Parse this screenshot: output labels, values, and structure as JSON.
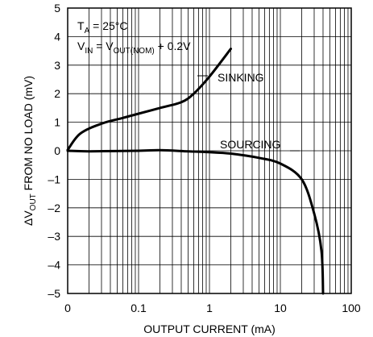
{
  "chart_data": {
    "type": "line",
    "title": "",
    "xlabel": "OUTPUT CURRENT (mA)",
    "ylabel": {
      "prefix": "ΔV",
      "sub": "OUT",
      "suffix": " FROM NO LOAD (mV)"
    },
    "x_scale": "log, with 0 at the left edge",
    "x_ticks": [
      {
        "value": 0,
        "label": "0"
      },
      {
        "value": 0.1,
        "label": "0.1"
      },
      {
        "value": 1,
        "label": "1"
      },
      {
        "value": 10,
        "label": "10"
      },
      {
        "value": 100,
        "label": "100"
      }
    ],
    "y_ticks": [
      {
        "value": 5,
        "label": "5"
      },
      {
        "value": 4,
        "label": "4"
      },
      {
        "value": 3,
        "label": "3"
      },
      {
        "value": 2,
        "label": "2"
      },
      {
        "value": 1,
        "label": "1"
      },
      {
        "value": 0,
        "label": "0"
      },
      {
        "value": -1,
        "label": "–1"
      },
      {
        "value": -2,
        "label": "–2"
      },
      {
        "value": -3,
        "label": "–3"
      },
      {
        "value": -4,
        "label": "–4"
      },
      {
        "value": -5,
        "label": "–5"
      }
    ],
    "ylim": [
      -5,
      5
    ],
    "grid": true,
    "annotations": {
      "line1": {
        "prefix": "T",
        "sub": "A",
        "suffix": " = 25°C"
      },
      "line2": {
        "p1": "V",
        "s1": "IN",
        "p2": " = V",
        "s2": "OUT(NOM)",
        "p3": " + 0.2V"
      }
    },
    "series": [
      {
        "name": "SINKING",
        "points": [
          [
            0,
            0.03
          ],
          [
            0.015,
            0.6
          ],
          [
            0.03,
            0.95
          ],
          [
            0.06,
            1.15
          ],
          [
            0.1,
            1.3
          ],
          [
            0.2,
            1.5
          ],
          [
            0.4,
            1.7
          ],
          [
            0.6,
            2.0
          ],
          [
            1,
            2.6
          ],
          [
            2,
            3.57
          ]
        ]
      },
      {
        "name": "SOURCING",
        "points": [
          [
            0,
            0
          ],
          [
            0.02,
            -0.02
          ],
          [
            0.1,
            0.0
          ],
          [
            0.2,
            0.02
          ],
          [
            0.5,
            -0.02
          ],
          [
            1,
            -0.05
          ],
          [
            2,
            -0.1
          ],
          [
            5,
            -0.25
          ],
          [
            10,
            -0.45
          ],
          [
            20,
            -1.0
          ],
          [
            30,
            -2.2
          ],
          [
            38,
            -3.5
          ],
          [
            40,
            -5
          ]
        ]
      }
    ]
  }
}
